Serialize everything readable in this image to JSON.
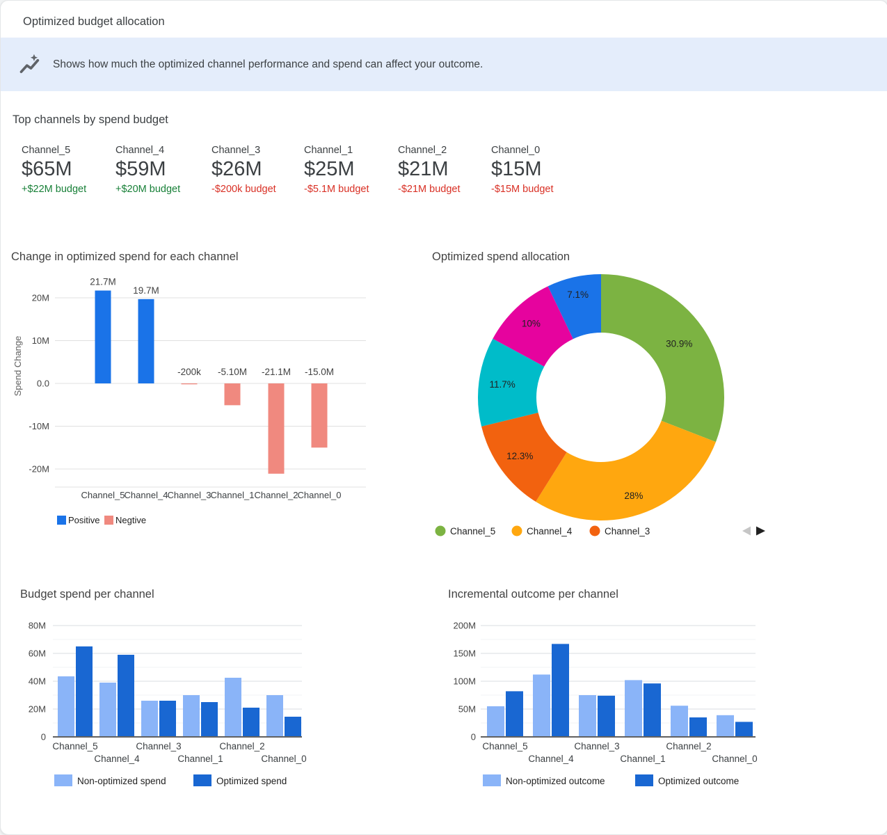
{
  "header": {
    "title": "Optimized budget allocation"
  },
  "banner": {
    "icon": "insights-trend-icon",
    "text": "Shows how much the optimized channel performance and spend can affect your outcome.",
    "bg_color": "#E4EDFB"
  },
  "top_channels": {
    "title": "Top channels by spend budget",
    "positive_color": "#188038",
    "negative_color": "#D93025",
    "items": [
      {
        "name": "Channel_5",
        "value": "$65M",
        "delta": "+$22M budget",
        "trend": "positive"
      },
      {
        "name": "Channel_4",
        "value": "$59M",
        "delta": "+$20M budget",
        "trend": "positive"
      },
      {
        "name": "Channel_3",
        "value": "$26M",
        "delta": "-$200k budget",
        "trend": "negative"
      },
      {
        "name": "Channel_1",
        "value": "$25M",
        "delta": "-$5.1M budget",
        "trend": "negative"
      },
      {
        "name": "Channel_2",
        "value": "$21M",
        "delta": "-$21M budget",
        "trend": "negative"
      },
      {
        "name": "Channel_0",
        "value": "$15M",
        "delta": "-$15M budget",
        "trend": "negative"
      }
    ]
  },
  "chart_data": [
    {
      "type": "bar",
      "title": "Change in optimized spend for each channel",
      "ylabel": "Spend Change",
      "categories": [
        "Channel_5",
        "Channel_4",
        "Channel_3",
        "Channel_1",
        "Channel_2",
        "Channel_0"
      ],
      "values": [
        21.7,
        19.7,
        -0.2,
        -5.1,
        -21.1,
        -15.0
      ],
      "value_labels": [
        "21.7M",
        "19.7M",
        "-200k",
        "-5.10M",
        "-21.1M",
        "-15.0M"
      ],
      "unit": "M",
      "ylim": [
        -25,
        25
      ],
      "yticks": [
        {
          "v": 20,
          "label": "20M"
        },
        {
          "v": 10,
          "label": "10M"
        },
        {
          "v": 0,
          "label": "0.0"
        },
        {
          "v": -10,
          "label": "-10M"
        },
        {
          "v": -20,
          "label": "-20M"
        }
      ],
      "grid": true,
      "legend_position": "bottom",
      "legend": [
        {
          "label": "Positive",
          "color": "#1A73E8"
        },
        {
          "label": "Negtive",
          "color": "#F0897F"
        }
      ]
    },
    {
      "type": "pie",
      "title": "Optimized spend allocation",
      "donut": true,
      "slices": [
        {
          "pct": 30.9,
          "label": "30.9%",
          "color": "#7CB342"
        },
        {
          "pct": 28,
          "label": "28%",
          "color": "#FFA70F"
        },
        {
          "pct": 12.3,
          "label": "12.3%",
          "color": "#F2620F"
        },
        {
          "pct": 11.7,
          "label": "11.7%",
          "color": "#00BCC9"
        },
        {
          "pct": 10,
          "label": "10%",
          "color": "#E6039E"
        },
        {
          "pct": 7.1,
          "label": "7.1%",
          "color": "#1A73E8"
        }
      ],
      "legend_position": "bottom",
      "legend": [
        {
          "label": "Channel_5",
          "color": "#7CB342"
        },
        {
          "label": "Channel_4",
          "color": "#FFA70F"
        },
        {
          "label": "Channel_3",
          "color": "#F2620F"
        }
      ],
      "legend_pagination": {
        "prev_enabled": false,
        "next_enabled": true,
        "prev_color": "#C6C6C6",
        "next_color": "#212121"
      }
    },
    {
      "type": "bar",
      "title": "Budget spend per channel",
      "categories": [
        "Channel_5",
        "Channel_4",
        "Channel_3",
        "Channel_1",
        "Channel_2",
        "Channel_0"
      ],
      "series": [
        {
          "name": "Non-optimized spend",
          "color": "#8AB4F8",
          "values": [
            43.5,
            39,
            26,
            30,
            42.5,
            30
          ]
        },
        {
          "name": "Optimized spend",
          "color": "#1967D2",
          "values": [
            65,
            59,
            26,
            25,
            21,
            14.5
          ]
        }
      ],
      "unit": "M",
      "ylim": [
        0,
        80
      ],
      "yticks": [
        {
          "v": 0,
          "label": "0"
        },
        {
          "v": 20,
          "label": "20M"
        },
        {
          "v": 40,
          "label": "40M"
        },
        {
          "v": 60,
          "label": "60M"
        },
        {
          "v": 80,
          "label": "80M"
        }
      ],
      "minor_gridlines": [
        10,
        30,
        50,
        70
      ],
      "grid": true,
      "legend_position": "bottom"
    },
    {
      "type": "bar",
      "title": "Incremental outcome per channel",
      "categories": [
        "Channel_5",
        "Channel_4",
        "Channel_3",
        "Channel_1",
        "Channel_2",
        "Channel_0"
      ],
      "series": [
        {
          "name": "Non-optimized outcome",
          "color": "#8AB4F8",
          "values": [
            55,
            112,
            75,
            102,
            56,
            39
          ]
        },
        {
          "name": "Optimized outcome",
          "color": "#1967D2",
          "values": [
            82,
            167,
            74,
            96,
            35,
            27
          ]
        }
      ],
      "unit": "M",
      "ylim": [
        0,
        200
      ],
      "yticks": [
        {
          "v": 0,
          "label": "0"
        },
        {
          "v": 50,
          "label": "50M"
        },
        {
          "v": 100,
          "label": "100M"
        },
        {
          "v": 150,
          "label": "150M"
        },
        {
          "v": 200,
          "label": "200M"
        }
      ],
      "minor_gridlines": [
        25,
        75,
        125,
        175
      ],
      "grid": true,
      "legend_position": "bottom"
    }
  ]
}
